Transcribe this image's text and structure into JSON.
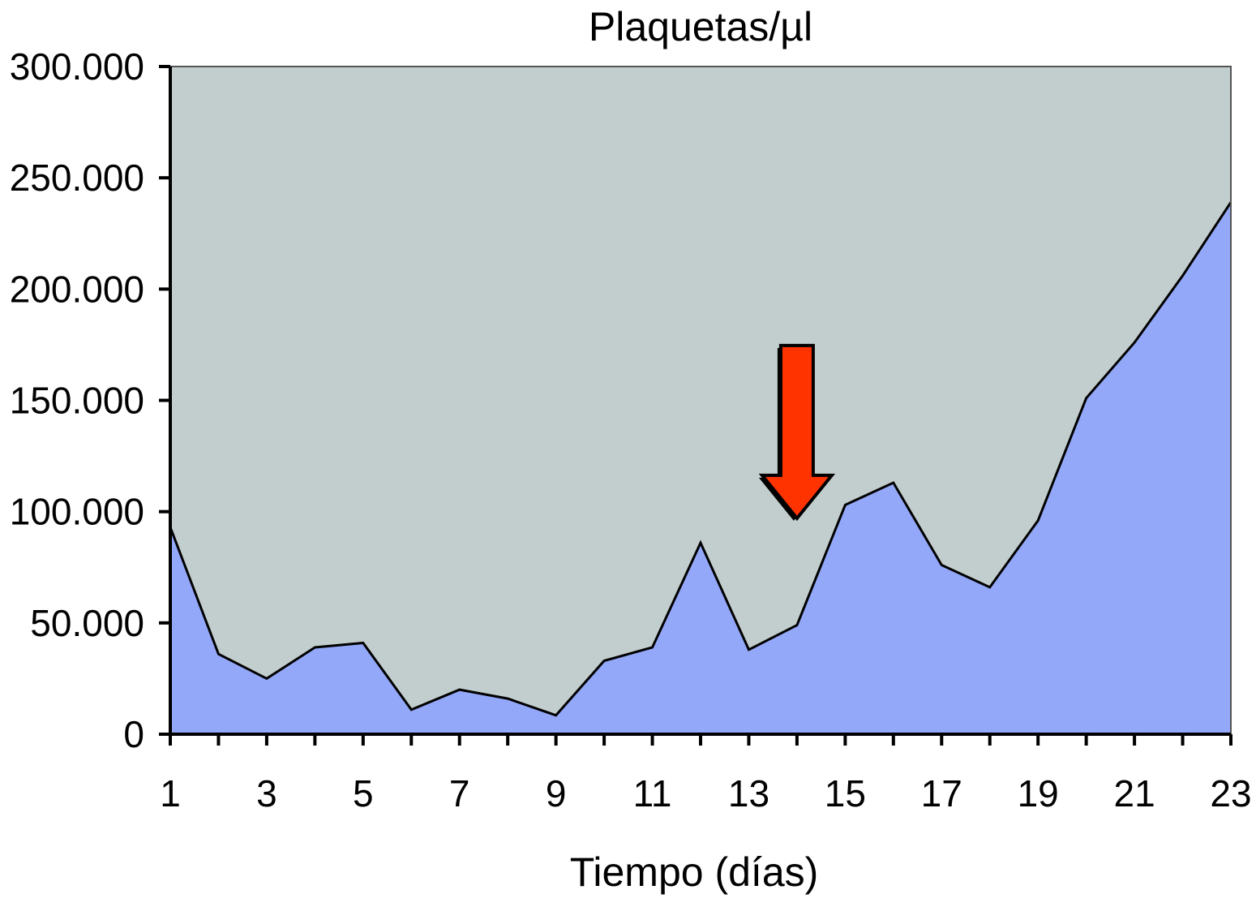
{
  "chart_data": {
    "type": "area",
    "title": "Plaquetas/µl",
    "xlabel": "Tiempo (días)",
    "ylabel": "",
    "x": [
      1,
      2,
      3,
      4,
      5,
      6,
      7,
      8,
      9,
      10,
      11,
      12,
      13,
      14,
      15,
      16,
      17,
      18,
      19,
      20,
      21,
      22,
      23
    ],
    "series": [
      {
        "values": [
          93000,
          36000,
          25000,
          39000,
          41000,
          11000,
          20000,
          16000,
          8500,
          33000,
          39000,
          86000,
          38000,
          49000,
          103000,
          113000,
          76000,
          66000,
          96000,
          151000,
          176000,
          206000,
          239000
        ],
        "color": "#94a8f9"
      }
    ],
    "xlim": [
      1,
      23
    ],
    "ylim": [
      0,
      300000
    ],
    "x_tick_labels": [
      "1",
      "3",
      "5",
      "7",
      "9",
      "11",
      "13",
      "15",
      "17",
      "19",
      "21",
      "23"
    ],
    "y_tick_labels": [
      "0",
      "50.000",
      "100.000",
      "150.000",
      "200.000",
      "250.000",
      "300.000"
    ],
    "grid": false,
    "annotations": [
      {
        "type": "arrow",
        "direction": "down",
        "x": 14,
        "y": 97000,
        "color": "#ff3300"
      }
    ],
    "colors": {
      "plot_background": "#c2cecd",
      "area_fill": "#94a8f9",
      "arrow": "#ff3300",
      "line": "#000000"
    }
  }
}
